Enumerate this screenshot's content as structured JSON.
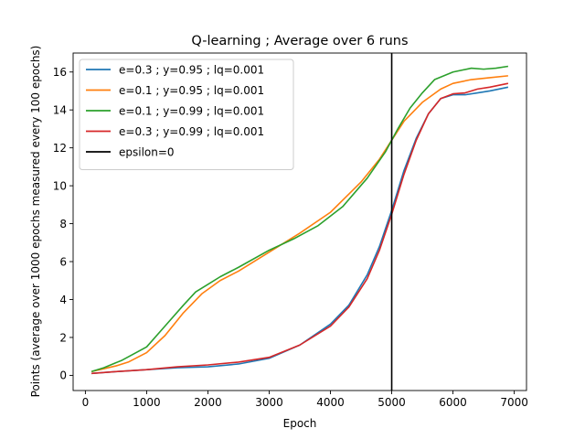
{
  "chart_data": {
    "type": "line",
    "title": "Q-learning ; Average over 6 runs",
    "xlabel": "Epoch",
    "ylabel": "Points (average over 1000 epochs measured every 100 epochs)",
    "xlim": [
      -200,
      7200
    ],
    "ylim": [
      -0.8,
      17.0
    ],
    "xticks": [
      0,
      1000,
      2000,
      3000,
      4000,
      5000,
      6000,
      7000
    ],
    "yticks": [
      0,
      2,
      4,
      6,
      8,
      10,
      12,
      14,
      16
    ],
    "grid": false,
    "legend_position": "top-left",
    "vline": {
      "x": 5000,
      "name": "epsilon=0",
      "color": "#000000"
    },
    "series": [
      {
        "name": "e=0.3 ; y=0.95 ; lq=0.001",
        "color": "#1f77b4",
        "points": [
          [
            100,
            0.1
          ],
          [
            500,
            0.2
          ],
          [
            1000,
            0.3
          ],
          [
            1500,
            0.4
          ],
          [
            2000,
            0.45
          ],
          [
            2500,
            0.6
          ],
          [
            3000,
            0.9
          ],
          [
            3500,
            1.6
          ],
          [
            4000,
            2.7
          ],
          [
            4300,
            3.7
          ],
          [
            4600,
            5.3
          ],
          [
            4800,
            6.8
          ],
          [
            5000,
            8.7
          ],
          [
            5200,
            10.8
          ],
          [
            5400,
            12.5
          ],
          [
            5600,
            13.8
          ],
          [
            5800,
            14.6
          ],
          [
            6000,
            14.8
          ],
          [
            6200,
            14.8
          ],
          [
            6400,
            14.9
          ],
          [
            6600,
            15.0
          ],
          [
            6900,
            15.2
          ]
        ]
      },
      {
        "name": "e=0.1 ; y=0.95 ; lq=0.001",
        "color": "#ff7f0e",
        "points": [
          [
            100,
            0.2
          ],
          [
            300,
            0.35
          ],
          [
            500,
            0.5
          ],
          [
            700,
            0.7
          ],
          [
            1000,
            1.2
          ],
          [
            1300,
            2.1
          ],
          [
            1600,
            3.3
          ],
          [
            1900,
            4.3
          ],
          [
            2200,
            5.0
          ],
          [
            2500,
            5.5
          ],
          [
            3000,
            6.5
          ],
          [
            3500,
            7.5
          ],
          [
            4000,
            8.6
          ],
          [
            4500,
            10.2
          ],
          [
            4800,
            11.4
          ],
          [
            5000,
            12.4
          ],
          [
            5200,
            13.4
          ],
          [
            5500,
            14.4
          ],
          [
            5800,
            15.1
          ],
          [
            6000,
            15.4
          ],
          [
            6300,
            15.6
          ],
          [
            6600,
            15.7
          ],
          [
            6900,
            15.8
          ]
        ]
      },
      {
        "name": "e=0.1 ; y=0.99 ; lq=0.001",
        "color": "#2ca02c",
        "points": [
          [
            100,
            0.2
          ],
          [
            300,
            0.4
          ],
          [
            600,
            0.8
          ],
          [
            1000,
            1.5
          ],
          [
            1300,
            2.6
          ],
          [
            1600,
            3.7
          ],
          [
            1800,
            4.4
          ],
          [
            2000,
            4.8
          ],
          [
            2200,
            5.2
          ],
          [
            2500,
            5.7
          ],
          [
            3000,
            6.6
          ],
          [
            3400,
            7.2
          ],
          [
            3800,
            7.9
          ],
          [
            4200,
            8.9
          ],
          [
            4600,
            10.4
          ],
          [
            4900,
            11.8
          ],
          [
            5100,
            13.0
          ],
          [
            5300,
            14.1
          ],
          [
            5500,
            14.9
          ],
          [
            5700,
            15.6
          ],
          [
            6000,
            16.0
          ],
          [
            6300,
            16.2
          ],
          [
            6500,
            16.15
          ],
          [
            6700,
            16.2
          ],
          [
            6900,
            16.3
          ]
        ]
      },
      {
        "name": "e=0.3 ; y=0.99 ; lq=0.001",
        "color": "#d62728",
        "points": [
          [
            100,
            0.1
          ],
          [
            500,
            0.2
          ],
          [
            1000,
            0.3
          ],
          [
            1500,
            0.45
          ],
          [
            2000,
            0.55
          ],
          [
            2500,
            0.7
          ],
          [
            3000,
            0.95
          ],
          [
            3500,
            1.6
          ],
          [
            4000,
            2.6
          ],
          [
            4300,
            3.6
          ],
          [
            4600,
            5.1
          ],
          [
            4800,
            6.6
          ],
          [
            5000,
            8.5
          ],
          [
            5200,
            10.6
          ],
          [
            5400,
            12.4
          ],
          [
            5600,
            13.8
          ],
          [
            5800,
            14.6
          ],
          [
            6000,
            14.85
          ],
          [
            6200,
            14.9
          ],
          [
            6400,
            15.1
          ],
          [
            6600,
            15.2
          ],
          [
            6900,
            15.4
          ]
        ]
      }
    ]
  }
}
